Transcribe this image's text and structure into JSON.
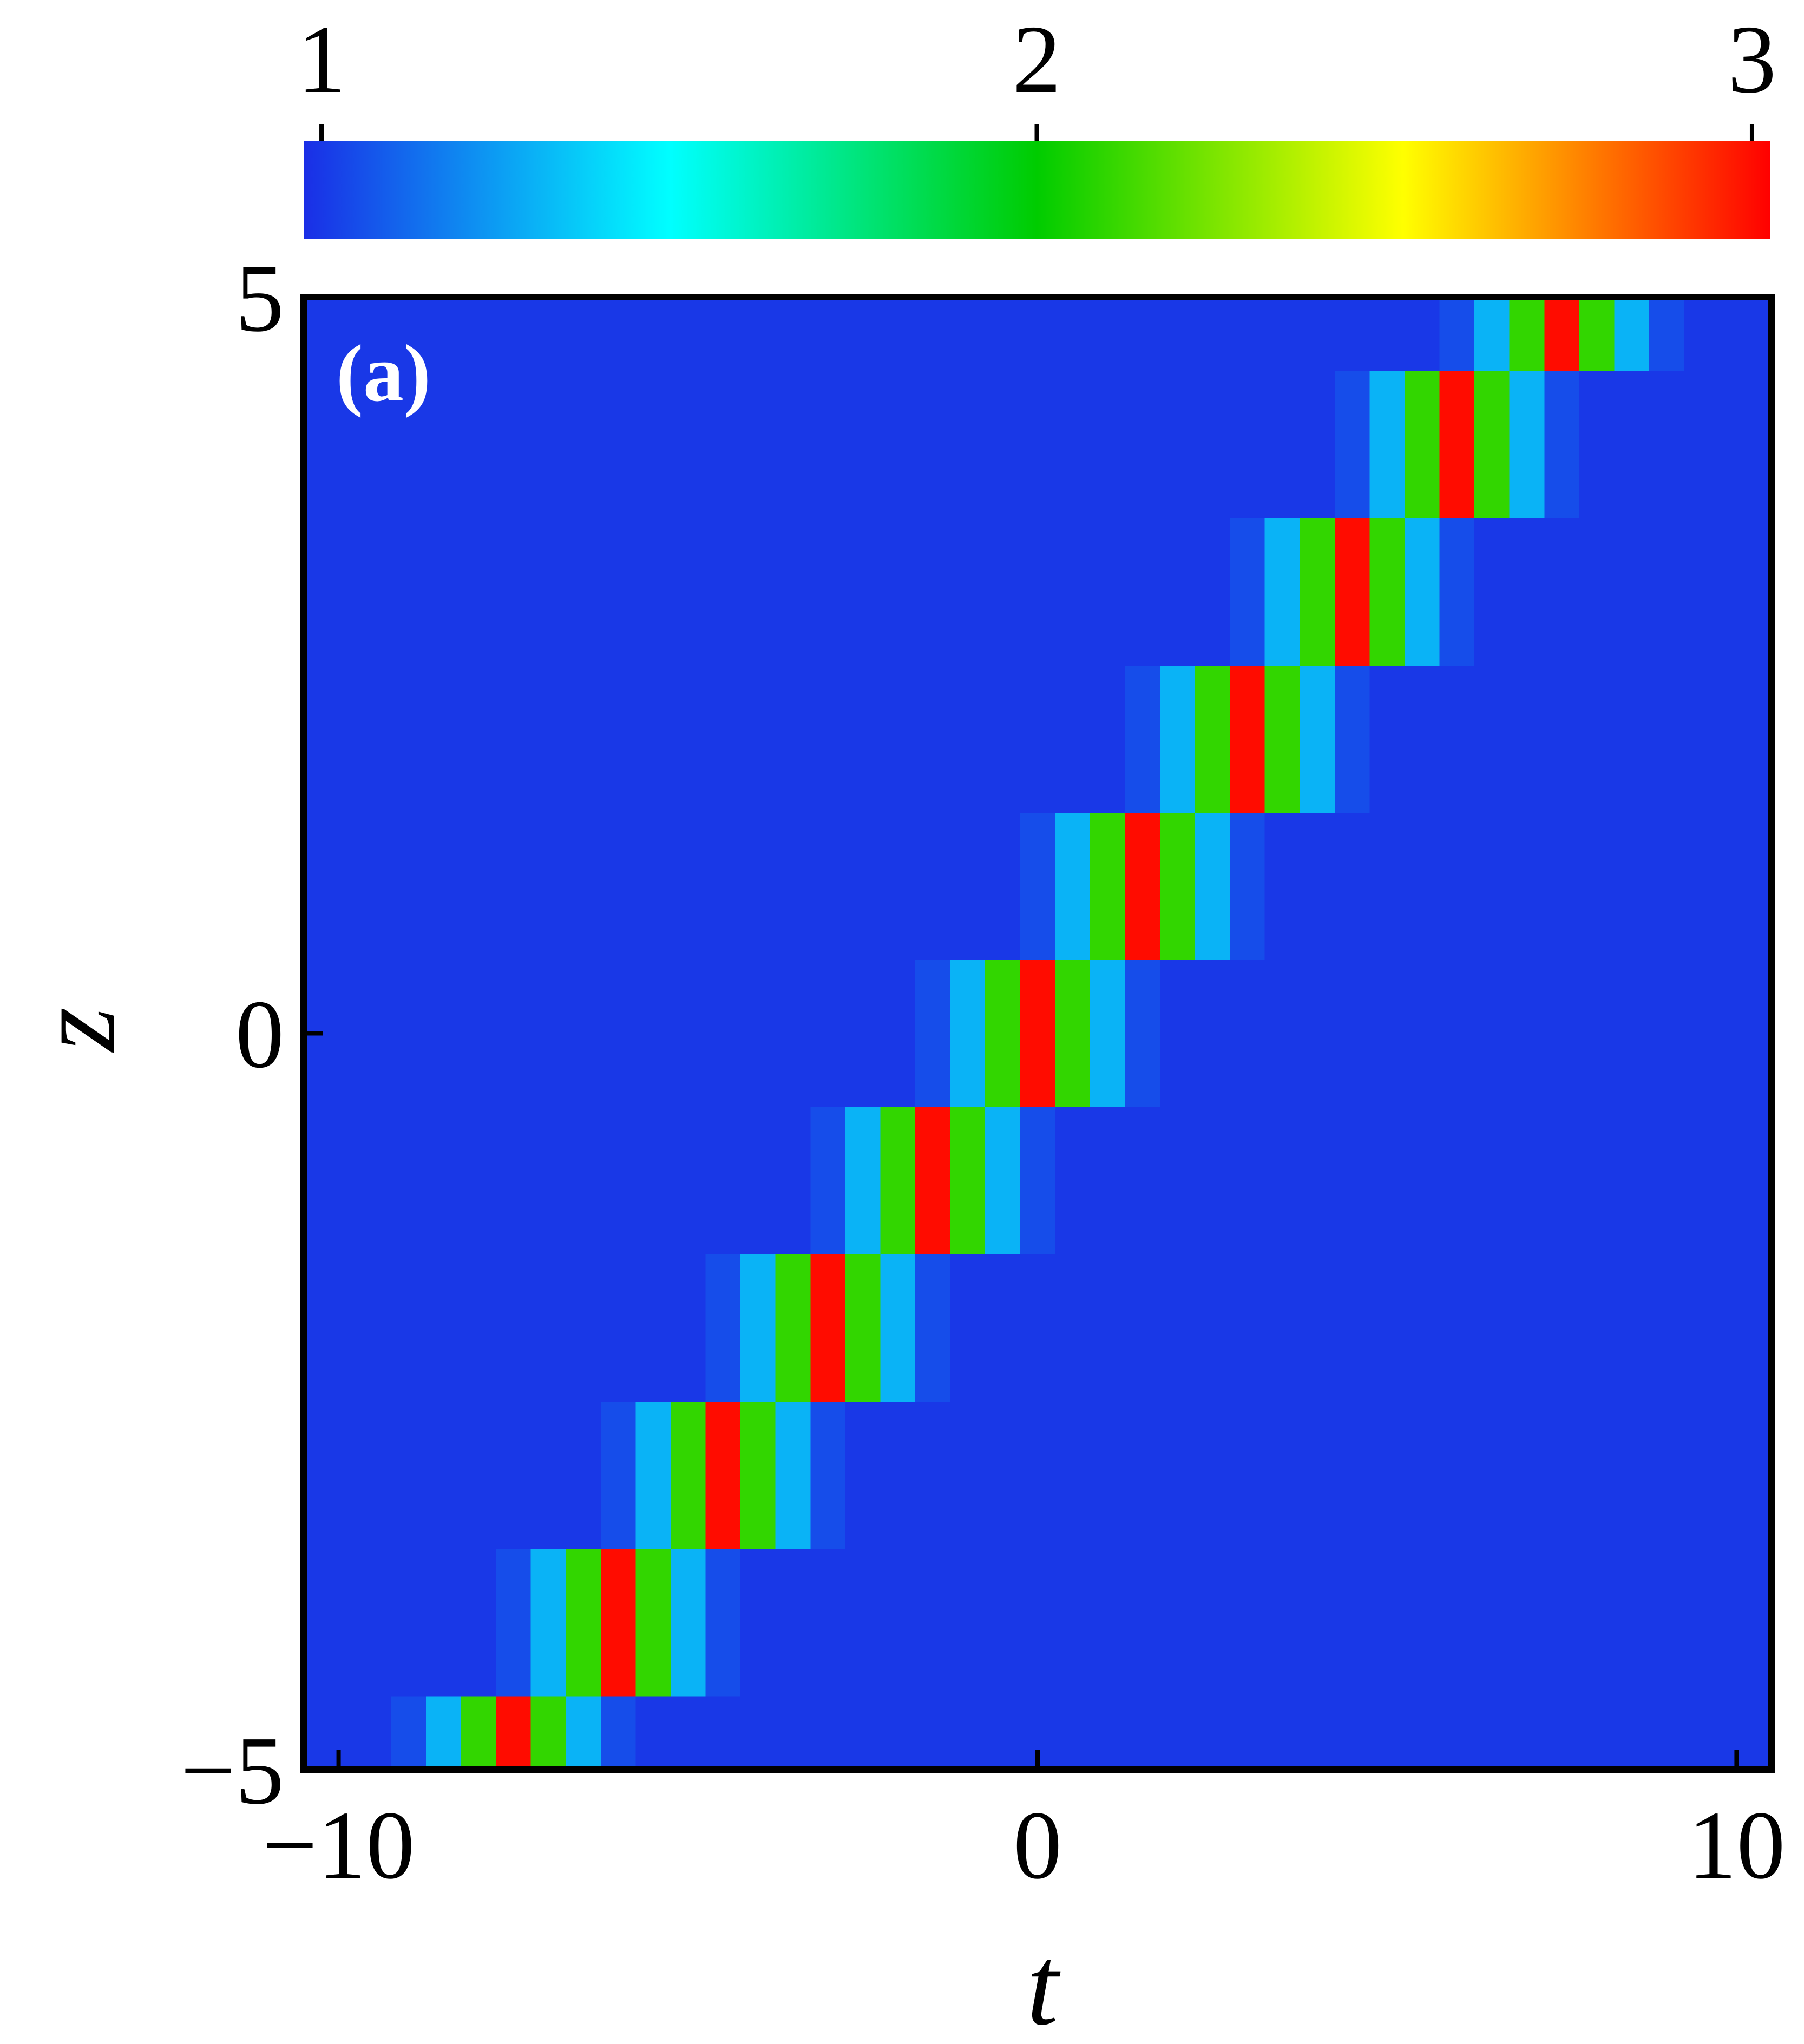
{
  "chart_data": {
    "type": "heatmap",
    "panel_label": "(a)",
    "x_label": "t",
    "y_label": "z",
    "x": [
      -10.5,
      -10,
      -9.5,
      -9,
      -8.5,
      -8,
      -7.5,
      -7,
      -6.5,
      -6,
      -5.5,
      -5,
      -4.5,
      -4,
      -3.5,
      -3,
      -2.5,
      -2,
      -1.5,
      -1,
      -0.5,
      0,
      0.5,
      1,
      1.5,
      2,
      2.5,
      3,
      3.5,
      4,
      4.5,
      5,
      5.5,
      6,
      6.5,
      7,
      7.5,
      8,
      8.5,
      9,
      9.5,
      10,
      10.5
    ],
    "y": [
      -5,
      -4,
      -3,
      -2,
      -1,
      0,
      1,
      2,
      3,
      4,
      5
    ],
    "z": [
      [
        1,
        1,
        1,
        1.05,
        1.3,
        2.1,
        3,
        2.1,
        1.3,
        1.05,
        1,
        1,
        1,
        1,
        1,
        1,
        1,
        1,
        1,
        1,
        1,
        1,
        1,
        1,
        1,
        1,
        1,
        1,
        1,
        1,
        1,
        1,
        1,
        1,
        1,
        1,
        1,
        1,
        1,
        1,
        1,
        1,
        1
      ],
      [
        1,
        1,
        1,
        1,
        1,
        1,
        1.05,
        1.3,
        2.1,
        3,
        2.1,
        1.3,
        1.05,
        1,
        1,
        1,
        1,
        1,
        1,
        1,
        1,
        1,
        1,
        1,
        1,
        1,
        1,
        1,
        1,
        1,
        1,
        1,
        1,
        1,
        1,
        1,
        1,
        1,
        1,
        1,
        1,
        1,
        1
      ],
      [
        1,
        1,
        1,
        1,
        1,
        1,
        1,
        1,
        1,
        1.05,
        1.3,
        2.1,
        3,
        2.1,
        1.3,
        1.05,
        1,
        1,
        1,
        1,
        1,
        1,
        1,
        1,
        1,
        1,
        1,
        1,
        1,
        1,
        1,
        1,
        1,
        1,
        1,
        1,
        1,
        1,
        1,
        1,
        1,
        1,
        1
      ],
      [
        1,
        1,
        1,
        1,
        1,
        1,
        1,
        1,
        1,
        1,
        1,
        1,
        1.05,
        1.3,
        2.1,
        3,
        2.1,
        1.3,
        1.05,
        1,
        1,
        1,
        1,
        1,
        1,
        1,
        1,
        1,
        1,
        1,
        1,
        1,
        1,
        1,
        1,
        1,
        1,
        1,
        1,
        1,
        1,
        1,
        1
      ],
      [
        1,
        1,
        1,
        1,
        1,
        1,
        1,
        1,
        1,
        1,
        1,
        1,
        1,
        1,
        1,
        1.05,
        1.3,
        2.1,
        3,
        2.1,
        1.3,
        1.05,
        1,
        1,
        1,
        1,
        1,
        1,
        1,
        1,
        1,
        1,
        1,
        1,
        1,
        1,
        1,
        1,
        1,
        1,
        1,
        1,
        1
      ],
      [
        1,
        1,
        1,
        1,
        1,
        1,
        1,
        1,
        1,
        1,
        1,
        1,
        1,
        1,
        1,
        1,
        1,
        1,
        1.05,
        1.3,
        2.1,
        3,
        2.1,
        1.3,
        1.05,
        1,
        1,
        1,
        1,
        1,
        1,
        1,
        1,
        1,
        1,
        1,
        1,
        1,
        1,
        1,
        1,
        1,
        1
      ],
      [
        1,
        1,
        1,
        1,
        1,
        1,
        1,
        1,
        1,
        1,
        1,
        1,
        1,
        1,
        1,
        1,
        1,
        1,
        1,
        1,
        1,
        1.05,
        1.3,
        2.1,
        3,
        2.1,
        1.3,
        1.05,
        1,
        1,
        1,
        1,
        1,
        1,
        1,
        1,
        1,
        1,
        1,
        1,
        1,
        1,
        1
      ],
      [
        1,
        1,
        1,
        1,
        1,
        1,
        1,
        1,
        1,
        1,
        1,
        1,
        1,
        1,
        1,
        1,
        1,
        1,
        1,
        1,
        1,
        1,
        1,
        1,
        1.05,
        1.3,
        2.1,
        3,
        2.1,
        1.3,
        1.05,
        1,
        1,
        1,
        1,
        1,
        1,
        1,
        1,
        1,
        1,
        1,
        1
      ],
      [
        1,
        1,
        1,
        1,
        1,
        1,
        1,
        1,
        1,
        1,
        1,
        1,
        1,
        1,
        1,
        1,
        1,
        1,
        1,
        1,
        1,
        1,
        1,
        1,
        1,
        1,
        1,
        1.05,
        1.3,
        2.1,
        3,
        2.1,
        1.3,
        1.05,
        1,
        1,
        1,
        1,
        1,
        1,
        1,
        1,
        1
      ],
      [
        1,
        1,
        1,
        1,
        1,
        1,
        1,
        1,
        1,
        1,
        1,
        1,
        1,
        1,
        1,
        1,
        1,
        1,
        1,
        1,
        1,
        1,
        1,
        1,
        1,
        1,
        1,
        1,
        1,
        1,
        1.05,
        1.3,
        2.1,
        3,
        2.1,
        1.3,
        1.05,
        1,
        1,
        1,
        1,
        1,
        1
      ],
      [
        1,
        1,
        1,
        1,
        1,
        1,
        1,
        1,
        1,
        1,
        1,
        1,
        1,
        1,
        1,
        1,
        1,
        1,
        1,
        1,
        1,
        1,
        1,
        1,
        1,
        1,
        1,
        1,
        1,
        1,
        1,
        1,
        1,
        1.05,
        1.3,
        2.1,
        3,
        2.1,
        1.3,
        1.05,
        1,
        1,
        1
      ]
    ],
    "xlim": [
      -10.5,
      10.5
    ],
    "ylim": [
      -5,
      5
    ],
    "xticks": [
      {
        "value": -10,
        "label": "−10"
      },
      0,
      10
    ],
    "yticks": [
      {
        "value": -5,
        "label": "−5"
      },
      0,
      5
    ],
    "clim": [
      0.975,
      3.025
    ],
    "cticks": [
      1,
      2,
      3
    ],
    "colormap": [
      "#1a2ee6",
      "#00ffff",
      "#00cc00",
      "#ffff00",
      "#ff0000"
    ]
  }
}
